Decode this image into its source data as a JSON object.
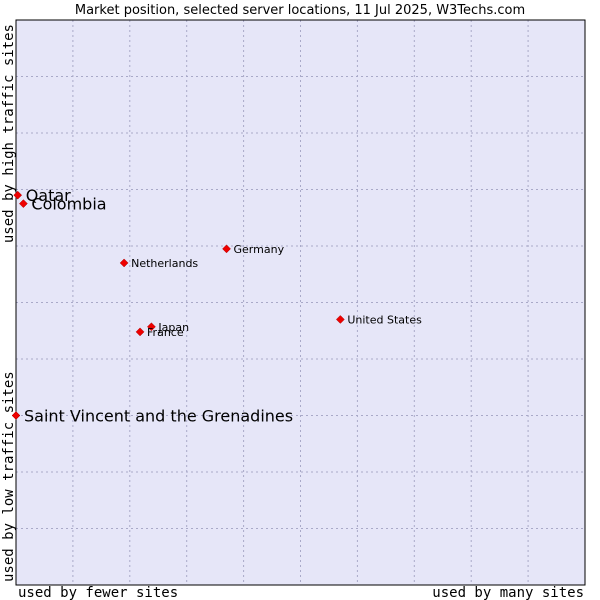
{
  "chart_data": {
    "type": "scatter",
    "title": "Market position, selected server locations, 11 Jul 2025, W3Techs.com",
    "xlabel_left": "used by fewer sites",
    "xlabel_right": "used by many sites",
    "ylabel_low": "used by low traffic sites",
    "ylabel_high": "used by high traffic sites",
    "xlim": [
      0,
      1
    ],
    "ylim": [
      0,
      1
    ],
    "grid": true,
    "colors": {
      "plot_bg": "#e6e6f8",
      "grid": "#a9a9c8",
      "marker": "#ee0000",
      "border": "#000000"
    },
    "points": [
      {
        "name": "Qatar",
        "x": 0.003,
        "y": 0.69,
        "size": "large"
      },
      {
        "name": "Colombia",
        "x": 0.013,
        "y": 0.675,
        "size": "large"
      },
      {
        "name": "Germany",
        "x": 0.37,
        "y": 0.595,
        "size": "small"
      },
      {
        "name": "Netherlands",
        "x": 0.19,
        "y": 0.57,
        "size": "small"
      },
      {
        "name": "United States",
        "x": 0.57,
        "y": 0.47,
        "size": "small"
      },
      {
        "name": "Japan",
        "x": 0.238,
        "y": 0.457,
        "size": "small"
      },
      {
        "name": "France",
        "x": 0.218,
        "y": 0.448,
        "size": "small"
      },
      {
        "name": "Saint Vincent and the Grenadines",
        "x": 0.0,
        "y": 0.3,
        "size": "large"
      }
    ]
  }
}
